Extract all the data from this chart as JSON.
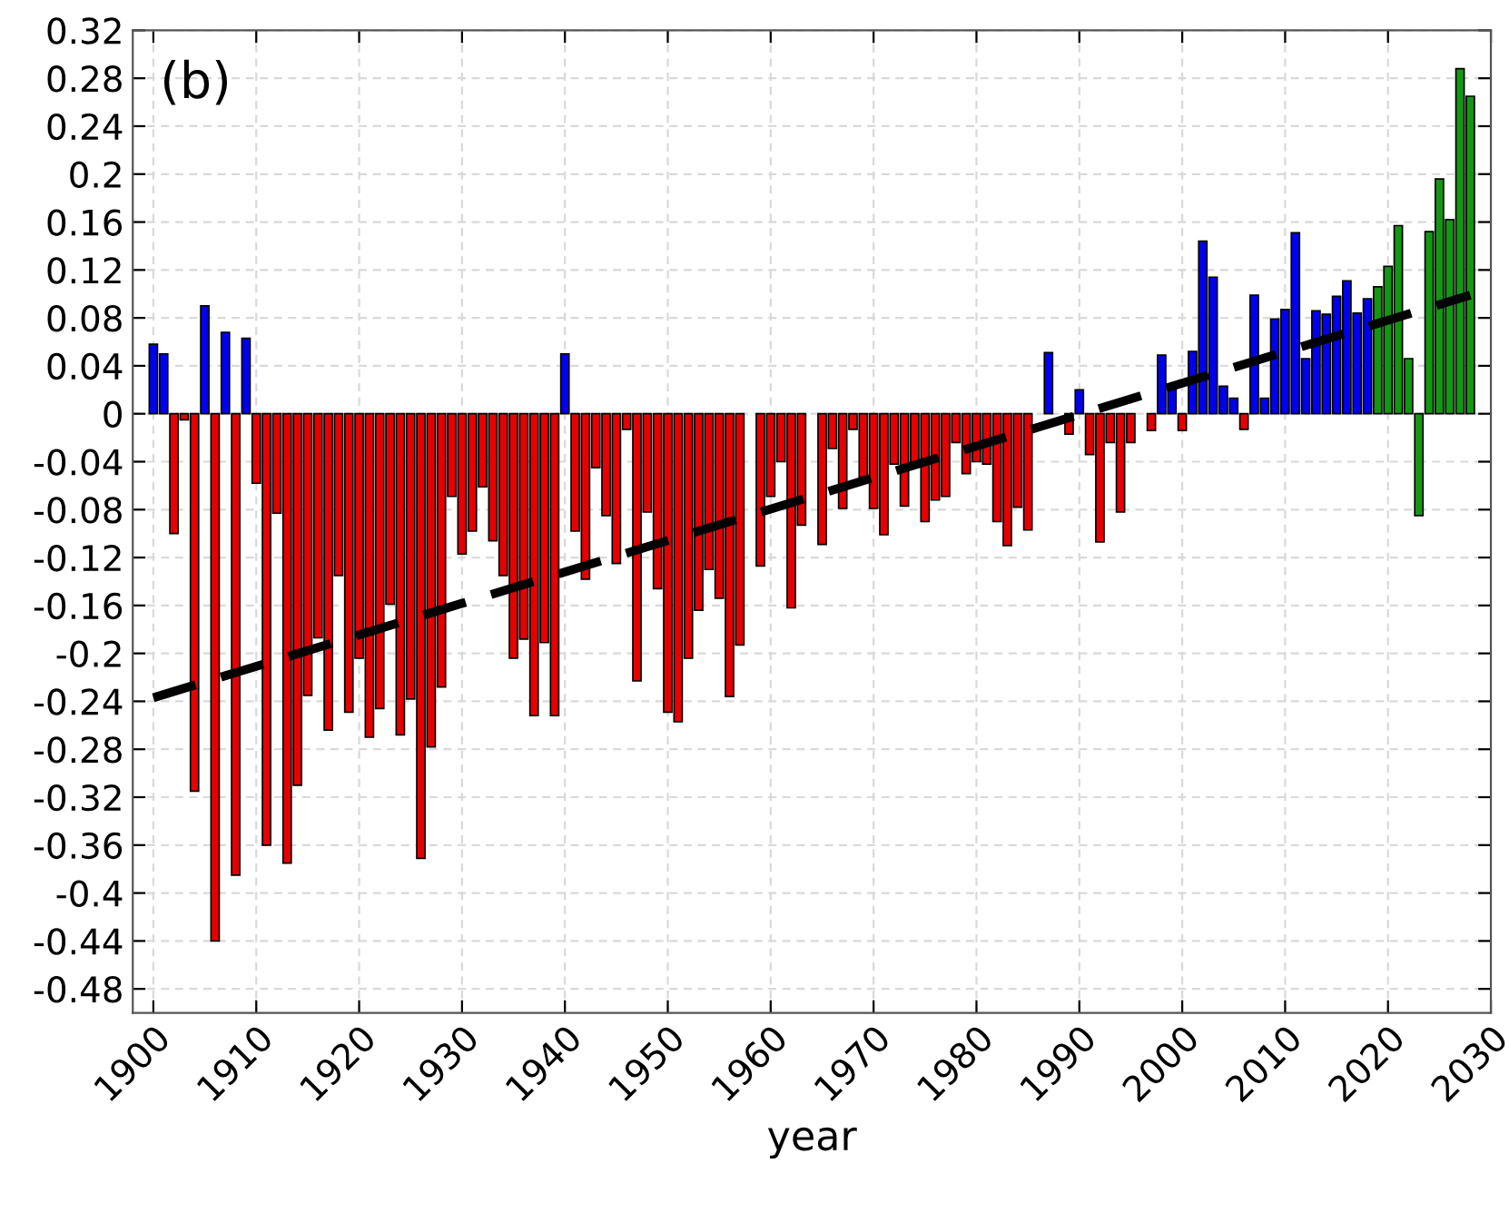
{
  "chart_data": {
    "type": "bar",
    "xlabel": "year",
    "annotations": [
      "(b)"
    ],
    "xlim": [
      1898,
      2030
    ],
    "xticks": [
      1900,
      1910,
      1920,
      1930,
      1940,
      1950,
      1960,
      1970,
      1980,
      1990,
      2000,
      2010,
      2020,
      2030
    ],
    "ylim": [
      -0.5,
      0.32
    ],
    "yticks": [
      -0.48,
      -0.44,
      -0.4,
      -0.36,
      -0.32,
      -0.28,
      -0.24,
      -0.2,
      -0.16,
      -0.12,
      -0.08,
      -0.04,
      0,
      0.04,
      0.08,
      0.12,
      0.16,
      0.2,
      0.24,
      0.28,
      0.32
    ],
    "grid": true,
    "series": [
      {
        "color": "#e60000",
        "x": [
          1902,
          1903,
          1904,
          1906,
          1908,
          1910,
          1911,
          1912,
          1913,
          1914,
          1915,
          1916,
          1917,
          1918,
          1919,
          1920,
          1921,
          1922,
          1923,
          1924,
          1925,
          1926,
          1927,
          1928,
          1929,
          1930,
          1931,
          1932,
          1933,
          1934,
          1935,
          1936,
          1937,
          1938,
          1939,
          1941,
          1942,
          1943,
          1944,
          1945,
          1946,
          1947,
          1948,
          1949,
          1950,
          1951,
          1952,
          1953,
          1954,
          1955,
          1956,
          1957,
          1959,
          1960,
          1961,
          1962,
          1963,
          1965,
          1966,
          1967,
          1968,
          1969,
          1970,
          1971,
          1972,
          1973,
          1974,
          1975,
          1976,
          1977,
          1978,
          1979,
          1980,
          1981,
          1982,
          1983,
          1984,
          1985,
          1988,
          1989,
          1991,
          1992,
          1993,
          1994,
          1995,
          1997,
          2000,
          2006
        ],
        "values": [
          -0.1,
          -0.005,
          -0.315,
          -0.44,
          -0.385,
          -0.058,
          -0.36,
          -0.083,
          -0.375,
          -0.31,
          -0.235,
          -0.187,
          -0.264,
          -0.135,
          -0.249,
          -0.204,
          -0.27,
          -0.246,
          -0.159,
          -0.268,
          -0.238,
          -0.371,
          -0.278,
          -0.228,
          -0.069,
          -0.117,
          -0.098,
          -0.061,
          -0.106,
          -0.135,
          -0.204,
          -0.188,
          -0.252,
          -0.191,
          -0.252,
          -0.098,
          -0.138,
          -0.045,
          -0.085,
          -0.125,
          -0.013,
          -0.223,
          -0.082,
          -0.146,
          -0.249,
          -0.257,
          -0.204,
          -0.164,
          -0.13,
          -0.154,
          -0.236,
          -0.193,
          -0.127,
          -0.069,
          -0.04,
          -0.162,
          -0.093,
          -0.109,
          -0.029,
          -0.079,
          -0.013,
          -0.053,
          -0.079,
          -0.101,
          -0.042,
          -0.077,
          -0.042,
          -0.09,
          -0.072,
          -0.069,
          -0.024,
          -0.05,
          -0.04,
          -0.042,
          -0.09,
          -0.11,
          -0.078,
          -0.097,
          null,
          -0.017,
          -0.034,
          -0.107,
          -0.024,
          -0.082,
          -0.024,
          -0.014,
          -0.014,
          -0.013
        ]
      },
      {
        "color": "#0000ee",
        "x": [
          1900,
          1901,
          1905,
          1907,
          1909,
          1940,
          1987,
          1990,
          1998,
          1999,
          2001,
          2002,
          2003,
          2004,
          2005,
          2007,
          2008,
          2009,
          2010,
          2011,
          2012,
          2013,
          2014,
          2015,
          2016,
          2017,
          2018
        ],
        "values": [
          0.058,
          0.05,
          0.09,
          0.068,
          0.063,
          0.05,
          0.051,
          0.02,
          0.049,
          0.025,
          0.052,
          0.144,
          0.114,
          0.023,
          0.013,
          0.099,
          0.013,
          0.079,
          0.087,
          0.151,
          0.046,
          0.086,
          0.083,
          0.098,
          0.111,
          0.084,
          0.096
        ]
      },
      {
        "color": "#149614",
        "x": [
          2019,
          2020,
          2021,
          2022,
          2023,
          2024,
          2025,
          2026,
          2027,
          2028
        ],
        "values": [
          0.106,
          0.123,
          0.157,
          0.046,
          -0.085,
          0.152,
          0.196,
          0.162,
          0.288,
          0.265
        ]
      },
      {
        "type": "line",
        "color": "#000000",
        "line_style": "dashed",
        "x": [
          1900,
          2028
        ],
        "values": [
          -0.237,
          0.099
        ]
      }
    ]
  }
}
